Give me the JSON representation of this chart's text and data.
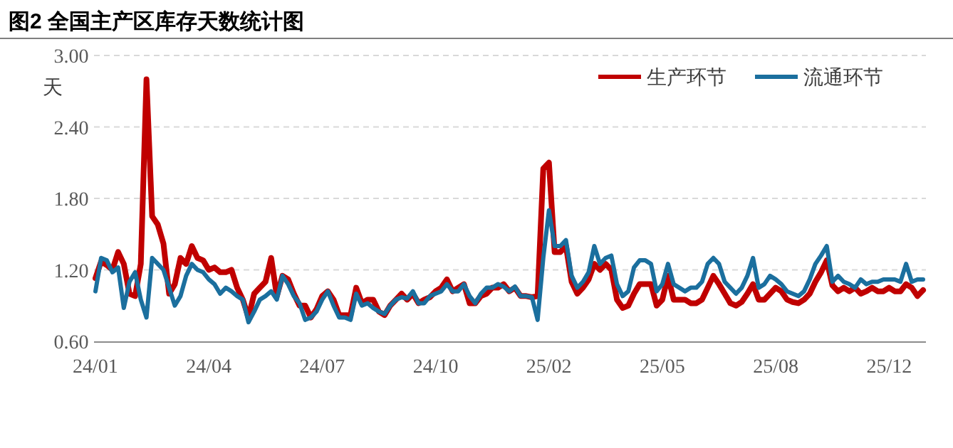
{
  "chart_data": {
    "type": "line",
    "title": "图2  全国主产区库存天数统计图",
    "ylabel": "天",
    "categories": [
      "24/01",
      null,
      null,
      null,
      null,
      null,
      null,
      null,
      null,
      null,
      null,
      null,
      null,
      null,
      null,
      null,
      null,
      null,
      null,
      null,
      "24/04",
      null,
      null,
      null,
      null,
      null,
      null,
      null,
      null,
      null,
      null,
      null,
      null,
      null,
      null,
      null,
      null,
      null,
      null,
      null,
      "24/07",
      null,
      null,
      null,
      null,
      null,
      null,
      null,
      null,
      null,
      null,
      null,
      null,
      null,
      null,
      null,
      null,
      null,
      null,
      null,
      "24/10",
      null,
      null,
      null,
      null,
      null,
      null,
      null,
      null,
      null,
      null,
      null,
      null,
      null,
      null,
      null,
      null,
      null,
      null,
      null,
      "25/02",
      null,
      null,
      null,
      null,
      null,
      null,
      null,
      null,
      null,
      null,
      null,
      null,
      null,
      null,
      null,
      null,
      null,
      null,
      null,
      "25/05",
      null,
      null,
      null,
      null,
      null,
      null,
      null,
      null,
      null,
      null,
      null,
      null,
      null,
      null,
      null,
      null,
      null,
      null,
      null,
      "25/08",
      null,
      null,
      null,
      null,
      null,
      null,
      null,
      null,
      null,
      null,
      null,
      null,
      null,
      null,
      null,
      null,
      null,
      null,
      null,
      "25/12",
      null,
      null,
      null,
      null,
      null,
      null
    ],
    "series": [
      {
        "name": "生产环节",
        "color": "#c00000",
        "values": [
          1.13,
          1.27,
          1.24,
          1.2,
          1.35,
          1.25,
          1.0,
          0.98,
          1.25,
          2.8,
          1.65,
          1.58,
          1.42,
          1.0,
          1.08,
          1.3,
          1.25,
          1.4,
          1.3,
          1.28,
          1.2,
          1.22,
          1.18,
          1.18,
          1.2,
          1.05,
          0.95,
          0.8,
          1.0,
          1.05,
          1.1,
          1.3,
          0.98,
          1.15,
          1.12,
          1.0,
          0.9,
          0.9,
          0.8,
          0.87,
          0.98,
          1.02,
          0.95,
          0.82,
          0.82,
          0.82,
          1.05,
          0.92,
          0.95,
          0.95,
          0.85,
          0.82,
          0.9,
          0.95,
          1.0,
          0.95,
          1.0,
          0.92,
          0.95,
          0.97,
          1.02,
          1.05,
          1.12,
          1.02,
          1.05,
          1.08,
          0.92,
          0.92,
          0.98,
          1.0,
          1.05,
          1.05,
          1.08,
          1.02,
          1.05,
          0.98,
          0.98,
          0.97,
          0.98,
          2.05,
          2.1,
          1.35,
          1.35,
          1.4,
          1.1,
          1.0,
          1.05,
          1.12,
          1.25,
          1.2,
          1.25,
          1.2,
          0.95,
          0.88,
          0.9,
          1.0,
          1.08,
          1.08,
          1.08,
          0.9,
          0.95,
          1.15,
          0.95,
          0.95,
          0.95,
          0.92,
          0.92,
          0.95,
          1.05,
          1.15,
          1.08,
          1.0,
          0.92,
          0.9,
          0.93,
          1.0,
          1.08,
          0.95,
          0.95,
          1.0,
          1.05,
          1.02,
          0.95,
          0.93,
          0.92,
          0.95,
          1.0,
          1.1,
          1.18,
          1.28,
          1.07,
          1.02,
          1.05,
          1.02,
          1.05,
          1.0,
          1.02,
          1.05,
          1.02,
          1.02,
          1.05,
          1.02,
          1.02,
          1.08,
          1.05,
          0.98,
          1.03
        ]
      },
      {
        "name": "流通环节",
        "color": "#1b6f9e",
        "values": [
          1.02,
          1.3,
          1.28,
          1.18,
          1.22,
          0.88,
          1.1,
          1.18,
          0.95,
          0.8,
          1.3,
          1.25,
          1.2,
          1.05,
          0.9,
          0.98,
          1.15,
          1.25,
          1.2,
          1.18,
          1.12,
          1.08,
          1.0,
          1.05,
          1.02,
          0.98,
          0.95,
          0.76,
          0.85,
          0.95,
          0.98,
          1.02,
          0.95,
          1.15,
          1.08,
          0.98,
          0.92,
          0.78,
          0.8,
          0.85,
          0.95,
          1.02,
          0.9,
          0.8,
          0.8,
          0.78,
          1.0,
          0.9,
          0.92,
          0.88,
          0.85,
          0.83,
          0.9,
          0.95,
          0.97,
          0.96,
          1.02,
          0.92,
          0.92,
          0.98,
          1.0,
          1.02,
          1.08,
          1.02,
          1.02,
          1.08,
          0.98,
          0.92,
          1.0,
          1.05,
          1.05,
          1.08,
          1.06,
          1.02,
          1.06,
          0.98,
          0.98,
          0.97,
          0.78,
          1.3,
          1.7,
          1.4,
          1.4,
          1.45,
          1.15,
          1.05,
          1.1,
          1.18,
          1.4,
          1.25,
          1.3,
          1.32,
          1.08,
          0.98,
          1.02,
          1.22,
          1.28,
          1.28,
          1.25,
          1.02,
          1.08,
          1.25,
          1.08,
          1.05,
          1.02,
          1.05,
          1.05,
          1.1,
          1.25,
          1.3,
          1.25,
          1.1,
          1.05,
          1.0,
          1.05,
          1.15,
          1.3,
          1.05,
          1.08,
          1.15,
          1.12,
          1.08,
          1.02,
          1.0,
          0.98,
          1.02,
          1.12,
          1.25,
          1.32,
          1.4,
          1.1,
          1.15,
          1.1,
          1.08,
          1.05,
          1.12,
          1.08,
          1.1,
          1.1,
          1.12,
          1.12,
          1.12,
          1.1,
          1.25,
          1.1,
          1.12,
          1.12
        ]
      }
    ],
    "ylim": [
      0.6,
      3.0
    ],
    "yticks": [
      {
        "value": 0.6,
        "label": "0.60"
      },
      {
        "value": 1.2,
        "label": "1.20"
      },
      {
        "value": 1.8,
        "label": "1.80"
      },
      {
        "value": 2.4,
        "label": "2.40"
      },
      {
        "value": 3.0,
        "label": "3.00"
      }
    ],
    "grid": "y",
    "legend": "top right",
    "marker": "none",
    "line_style": "solid"
  }
}
